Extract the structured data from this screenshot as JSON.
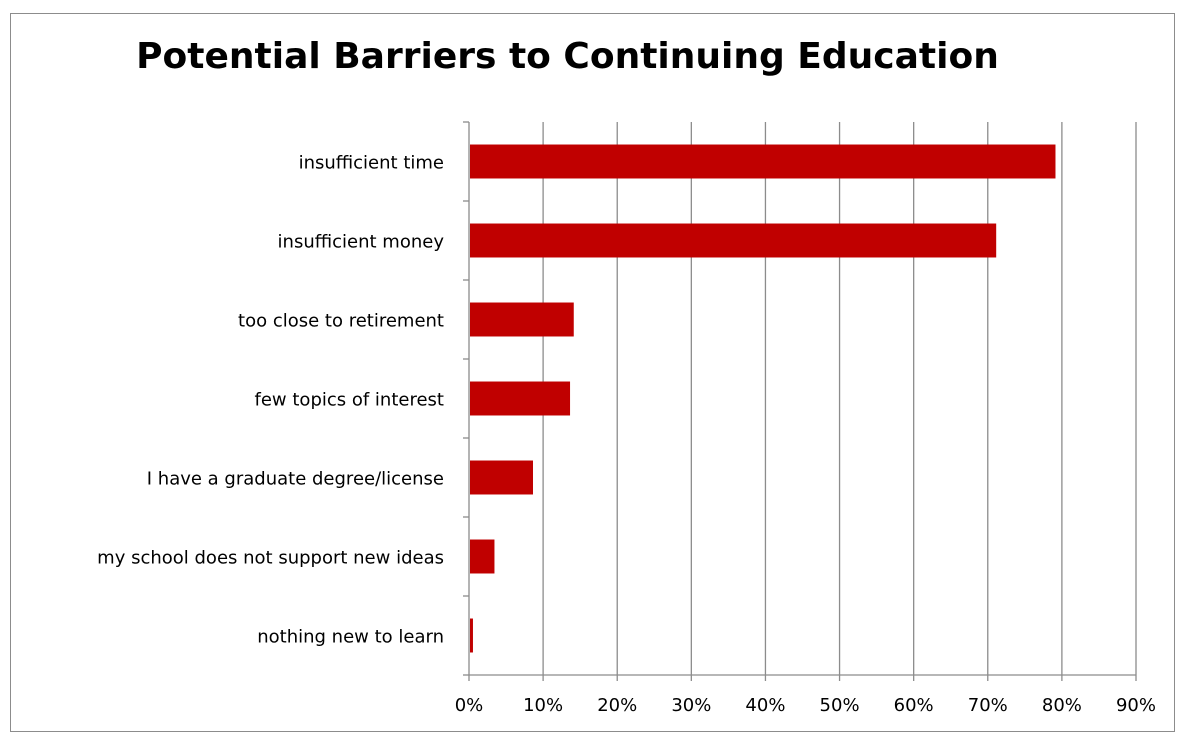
{
  "chart_data": {
    "type": "bar",
    "orientation": "horizontal",
    "title": "Potential Barriers to Continuing Education",
    "xlabel": "",
    "ylabel": "",
    "categories": [
      "insufficient time",
      "insufficient money",
      "too close to retirement",
      "few topics of interest",
      "I have a graduate degree/license",
      "my school does not support new ideas",
      "nothing new to learn"
    ],
    "values": [
      79,
      71,
      14,
      13.5,
      8.5,
      3.3,
      0.4
    ],
    "value_unit": "%",
    "xlim": [
      0,
      90
    ],
    "x_ticks": [
      "0%",
      "10%",
      "20%",
      "30%",
      "40%",
      "50%",
      "60%",
      "70%",
      "80%",
      "90%"
    ],
    "grid": "vertical gridlines on",
    "legend": "none",
    "bar_color": "#c00000",
    "gridline_color": "#8c8c8c"
  }
}
